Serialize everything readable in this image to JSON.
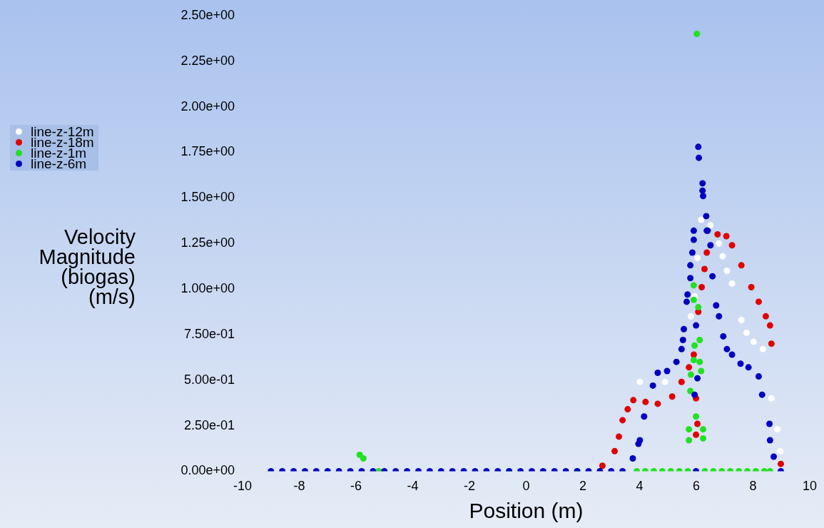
{
  "chart_data": {
    "type": "scatter",
    "xlabel": "Position (m)",
    "ylabel": "Velocity Magnitude (biogas) (m/s)",
    "xlim": [
      -10,
      10
    ],
    "xticks": [
      -10,
      -8,
      -6,
      -4,
      -2,
      0,
      2,
      4,
      6,
      8,
      10
    ],
    "ylim": [
      0,
      2.5
    ],
    "yticks": [
      {
        "value": 0,
        "label": "0.00e+00"
      },
      {
        "value": 0.25,
        "label": "2.50e-01"
      },
      {
        "value": 0.5,
        "label": "5.00e-01"
      },
      {
        "value": 0.75,
        "label": "7.50e-01"
      },
      {
        "value": 1,
        "label": "1.00e+00"
      },
      {
        "value": 1.25,
        "label": "1.25e+00"
      },
      {
        "value": 1.5,
        "label": "1.50e+00"
      },
      {
        "value": 1.75,
        "label": "1.75e+00"
      },
      {
        "value": 2,
        "label": "2.00e+00"
      },
      {
        "value": 2.25,
        "label": "2.25e+00"
      },
      {
        "value": 2.5,
        "label": "2.50e+00"
      }
    ],
    "legend": "left",
    "marker": "circle",
    "grid": false,
    "series": [
      {
        "name": "line-z-12m",
        "color": "#ffffff",
        "x": [
          4.01,
          4.9,
          5.81,
          5.94,
          6.04,
          6.17,
          6.5,
          6.8,
          6.93,
          7.08,
          7.26,
          7.59,
          7.77,
          8.02,
          8.35,
          8.65,
          8.86,
          8.96
        ],
        "values": [
          0.49,
          0.49,
          0.85,
          0.96,
          1.17,
          1.38,
          1.35,
          1.25,
          1.18,
          1.1,
          1.03,
          0.83,
          0.76,
          0.71,
          0.67,
          0.4,
          0.23,
          0.11
        ]
      },
      {
        "name": "line-z-18m",
        "color": "#e00000",
        "x": [
          2.69,
          3.12,
          3.27,
          3.4,
          3.58,
          3.78,
          4.21,
          4.64,
          5.15,
          5.48,
          5.74,
          5.91,
          5.99,
          6.04,
          5.99,
          6.07,
          6.19,
          6.29,
          6.37,
          6.75,
          7.06,
          7.26,
          7.59,
          7.94,
          8.2,
          8.45,
          8.6,
          8.65,
          8.98
        ],
        "values": [
          0.03,
          0.11,
          0.19,
          0.28,
          0.34,
          0.39,
          0.38,
          0.37,
          0.41,
          0.49,
          0.57,
          0.64,
          0.4,
          0.26,
          0.2,
          0.875,
          1.01,
          1.11,
          1.2,
          1.3,
          1.29,
          1.24,
          1.13,
          1.01,
          0.93,
          0.85,
          0.8,
          0.7,
          0.04
        ]
      },
      {
        "name": "line-z-1m",
        "color": "#22e022",
        "x": [
          -5.87,
          -5.74,
          -5.2,
          -0.6,
          1.8,
          3.9,
          4.2,
          4.5,
          4.8,
          5.1,
          5.4,
          5.7,
          6.3,
          6.6,
          6.9,
          7.2,
          7.5,
          7.8,
          8.1,
          8.4,
          8.6,
          6.02,
          5.91,
          5.91,
          6.07,
          6.12,
          5.94,
          5.91,
          6.12,
          6.17,
          5.81,
          5.79,
          5.99,
          5.74,
          6.24,
          5.74,
          6.24
        ],
        "values": [
          0.09,
          0.07,
          0,
          0,
          0,
          0,
          0,
          0,
          0,
          0,
          0,
          0,
          0,
          0,
          0,
          0,
          0,
          0,
          0,
          0,
          0,
          2.4,
          1.02,
          0.94,
          0.9,
          0.72,
          0.69,
          0.61,
          0.6,
          0.55,
          0.53,
          0.44,
          0.3,
          0.23,
          0.23,
          0.17,
          0.18
        ]
      },
      {
        "name": "line-z-6m",
        "color": "#0000c0",
        "x": [
          -9,
          -8.6,
          -8.2,
          -7.8,
          -7.4,
          -7,
          -6.6,
          -6.2,
          -5.8,
          -5.4,
          -5,
          -4.6,
          -4.2,
          -3.8,
          -3.4,
          -3,
          -2.6,
          -2.2,
          -1.8,
          -1.4,
          -1,
          -0.6,
          -0.2,
          0.2,
          0.6,
          1,
          1.4,
          1.8,
          2.2,
          2.6,
          3,
          3.4,
          3.76,
          3.96,
          4.01,
          4.16,
          4.47,
          4.64,
          4.97,
          5.3,
          5.48,
          5.53,
          5.56,
          5.66,
          5.69,
          5.79,
          5.79,
          5.86,
          5.91,
          5.91,
          6.07,
          6.09,
          6.22,
          6.22,
          6.24,
          6.35,
          6.4,
          6.37,
          6.5,
          6.57,
          6.7,
          6.8,
          6.95,
          7.08,
          7.26,
          7.56,
          7.84,
          8.2,
          8.32,
          8.58,
          8.6,
          8.73,
          8.98,
          5.99,
          6.04,
          5.94,
          5.99
        ],
        "values": [
          0,
          0,
          0,
          0,
          0,
          0,
          0,
          0,
          0,
          0,
          0,
          0,
          0,
          0,
          0,
          0,
          0,
          0,
          0,
          0,
          0,
          0,
          0,
          0,
          0,
          0,
          0,
          0,
          0,
          0,
          0,
          0,
          0.07,
          0.15,
          0.17,
          0.3,
          0.47,
          0.54,
          0.55,
          0.6,
          0.67,
          0.72,
          0.78,
          0.93,
          0.97,
          1.06,
          1.13,
          1.2,
          1.27,
          1.32,
          1.78,
          1.72,
          1.58,
          1.54,
          1.51,
          1.4,
          1.32,
          1.32,
          1.24,
          1.07,
          0.91,
          0.85,
          0.74,
          0.67,
          0.64,
          0.59,
          0.57,
          0.52,
          0.42,
          0.26,
          0.17,
          0.08,
          0,
          0.8,
          0.51,
          0.42,
          0
        ]
      }
    ]
  }
}
